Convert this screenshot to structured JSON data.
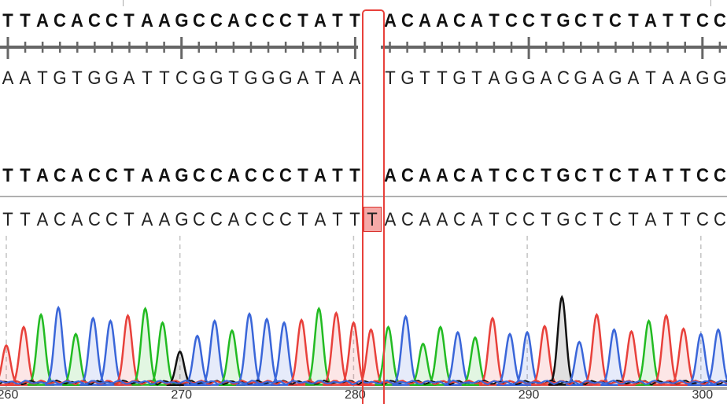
{
  "reference_sequence": "TTACACCTAAGCCACCCTATT ACAACATCCTGCTCTATTCC",
  "complement_sequence": "AATGTGGATTCGGTGGGATAA TGTTGTAGGACGAGATAAGG",
  "consensus_sequence": "TTACACCTAAGCCACCCTATT ACAACATCCTGCTCTATTCC",
  "read_sequence": "TTACACCTAAGCCACCCTATTTACAACATCCTGCTCTATTCC",
  "highlight": {
    "index": 21,
    "base": "T",
    "type": "insertion",
    "color": "#e8413b"
  },
  "base_colors": {
    "A": "#22bb22",
    "C": "#3a66d9",
    "G": "#111111",
    "T": "#e8413b"
  },
  "chart_data": {
    "type": "line",
    "description_kind": "sequencing chromatogram",
    "bases": "TTACACCTAAGCCACCCTATTTACAACATCCTGCTCTATTCC",
    "peak_intensity_percent": [
      45,
      66,
      80,
      88,
      58,
      76,
      73,
      79,
      87,
      71,
      38,
      56,
      73,
      62,
      81,
      75,
      71,
      74,
      87,
      82,
      71,
      63,
      66,
      78,
      47,
      66,
      60,
      54,
      76,
      58,
      60,
      67,
      100,
      49,
      80,
      63,
      61,
      73,
      79,
      64,
      58,
      63
    ],
    "x_tick_labels": [
      "260",
      "270",
      "280",
      "290",
      "300"
    ],
    "grid": "dashed vertical every 10 bases"
  }
}
